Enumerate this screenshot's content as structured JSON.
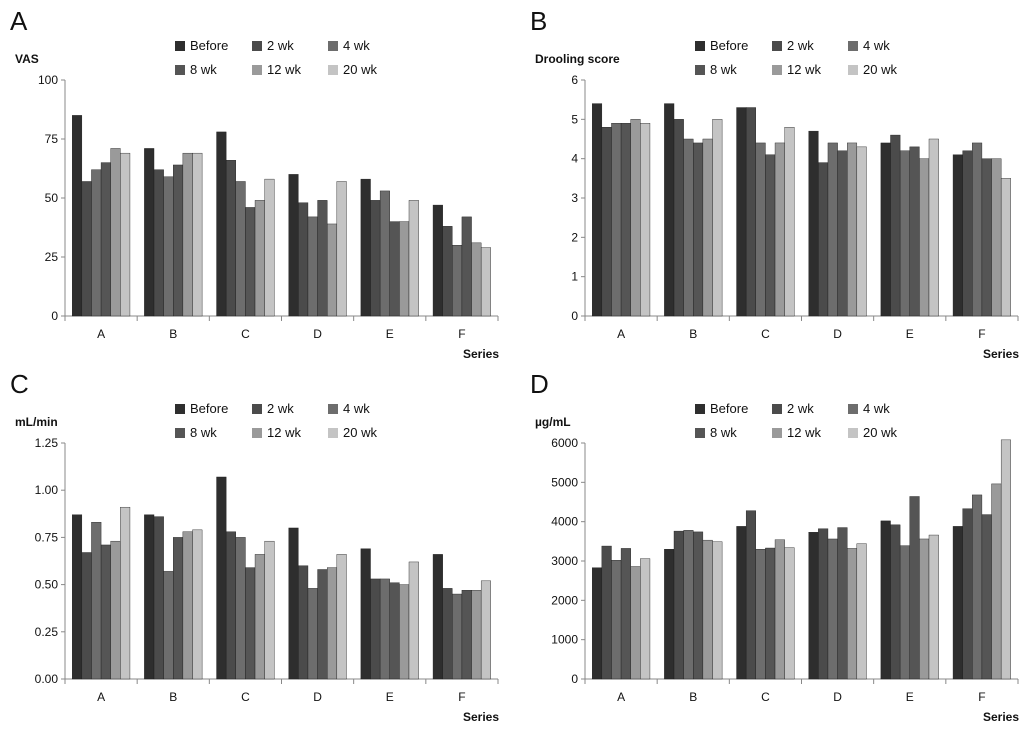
{
  "series_colors": [
    "#2e2e2e",
    "#4b4b4b",
    "#6d6d6d",
    "#555555",
    "#9a9a9a",
    "#c4c4c4"
  ],
  "chart_data": [
    {
      "id": "A",
      "type": "bar",
      "panel_label": "A",
      "title": "",
      "ylabel": "VAS",
      "xlabel": "Series",
      "categories": [
        "A",
        "B",
        "C",
        "D",
        "E",
        "F"
      ],
      "ylim": [
        0,
        100
      ],
      "yticks": [
        "0",
        "25",
        "50",
        "75",
        "100"
      ],
      "series": [
        {
          "name": "Before",
          "values": [
            85,
            71,
            78,
            60,
            58,
            47
          ]
        },
        {
          "name": "2 wk",
          "values": [
            57,
            62,
            66,
            48,
            49,
            38
          ]
        },
        {
          "name": "4 wk",
          "values": [
            62,
            59,
            57,
            42,
            53,
            30
          ]
        },
        {
          "name": "8 wk",
          "values": [
            65,
            64,
            46,
            49,
            40,
            42
          ]
        },
        {
          "name": "12 wk",
          "values": [
            71,
            69,
            49,
            39,
            40,
            31
          ]
        },
        {
          "name": "20 wk",
          "values": [
            69,
            69,
            58,
            57,
            49,
            29
          ]
        }
      ]
    },
    {
      "id": "B",
      "type": "bar",
      "panel_label": "B",
      "title": "",
      "ylabel": "Drooling score",
      "xlabel": "Series",
      "categories": [
        "A",
        "B",
        "C",
        "D",
        "E",
        "F"
      ],
      "ylim": [
        0,
        6
      ],
      "yticks": [
        "0",
        "1",
        "2",
        "3",
        "4",
        "5",
        "6"
      ],
      "series": [
        {
          "name": "Before",
          "values": [
            5.4,
            5.4,
            5.3,
            4.7,
            4.4,
            4.1
          ]
        },
        {
          "name": "2 wk",
          "values": [
            4.8,
            5.0,
            5.3,
            3.9,
            4.6,
            4.2
          ]
        },
        {
          "name": "4 wk",
          "values": [
            4.9,
            4.5,
            4.4,
            4.4,
            4.2,
            4.4
          ]
        },
        {
          "name": "8 wk",
          "values": [
            4.9,
            4.4,
            4.1,
            4.2,
            4.3,
            4.0
          ]
        },
        {
          "name": "12 wk",
          "values": [
            5.0,
            4.5,
            4.4,
            4.4,
            4.0,
            4.0
          ]
        },
        {
          "name": "20 wk",
          "values": [
            4.9,
            5.0,
            4.8,
            4.3,
            4.5,
            3.5
          ]
        }
      ]
    },
    {
      "id": "C",
      "type": "bar",
      "panel_label": "C",
      "title": "",
      "ylabel": "mL/min",
      "xlabel": "Series",
      "categories": [
        "A",
        "B",
        "C",
        "D",
        "E",
        "F"
      ],
      "ylim": [
        0,
        1.25
      ],
      "yticks": [
        "0.00",
        "0.25",
        "0.50",
        "0.75",
        "1.00",
        "1.25"
      ],
      "series": [
        {
          "name": "Before",
          "values": [
            0.87,
            0.87,
            1.07,
            0.8,
            0.69,
            0.66
          ]
        },
        {
          "name": "2 wk",
          "values": [
            0.67,
            0.86,
            0.78,
            0.6,
            0.53,
            0.48
          ]
        },
        {
          "name": "4 wk",
          "values": [
            0.83,
            0.57,
            0.75,
            0.48,
            0.53,
            0.45
          ]
        },
        {
          "name": "8 wk",
          "values": [
            0.71,
            0.75,
            0.59,
            0.58,
            0.51,
            0.47
          ]
        },
        {
          "name": "12 wk",
          "values": [
            0.73,
            0.78,
            0.66,
            0.59,
            0.5,
            0.47
          ]
        },
        {
          "name": "20 wk",
          "values": [
            0.91,
            0.79,
            0.73,
            0.66,
            0.62,
            0.52
          ]
        }
      ]
    },
    {
      "id": "D",
      "type": "bar",
      "panel_label": "D",
      "title": "",
      "ylabel": "µg/mL",
      "xlabel": "Series",
      "categories": [
        "A",
        "B",
        "C",
        "D",
        "E",
        "F"
      ],
      "ylim": [
        0,
        6000
      ],
      "yticks": [
        "0",
        "1000",
        "2000",
        "3000",
        "4000",
        "5000",
        "6000"
      ],
      "series": [
        {
          "name": "Before",
          "values": [
            2830,
            3300,
            3880,
            3730,
            4020,
            3880
          ]
        },
        {
          "name": "2 wk",
          "values": [
            3380,
            3760,
            4280,
            3820,
            3920,
            4330
          ]
        },
        {
          "name": "4 wk",
          "values": [
            3020,
            3780,
            3300,
            3560,
            3390,
            4680
          ]
        },
        {
          "name": "8 wk",
          "values": [
            3320,
            3740,
            3330,
            3850,
            4640,
            4180
          ]
        },
        {
          "name": "12 wk",
          "values": [
            2860,
            3530,
            3540,
            3320,
            3560,
            4960
          ]
        },
        {
          "name": "20 wk",
          "values": [
            3060,
            3490,
            3340,
            3440,
            3660,
            6080
          ]
        }
      ]
    }
  ]
}
